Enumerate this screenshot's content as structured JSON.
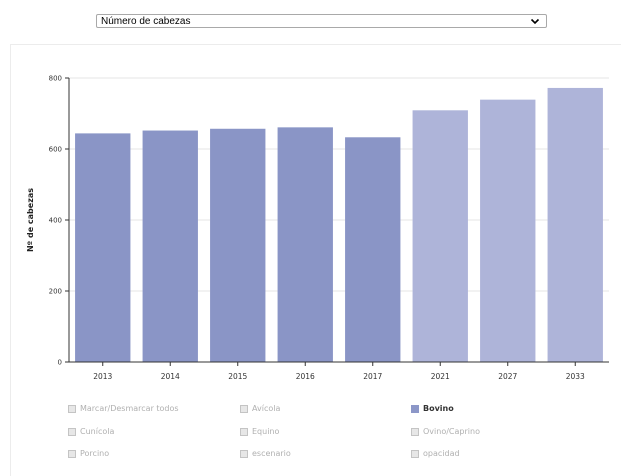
{
  "selector": {
    "value": "Número de cabezas"
  },
  "chart_data": {
    "type": "bar",
    "categories": [
      "2013",
      "2014",
      "2015",
      "2016",
      "2017",
      "2021",
      "2027",
      "2033"
    ],
    "values": [
      644,
      652,
      657,
      661,
      633,
      709,
      739,
      772
    ],
    "projected": [
      false,
      false,
      false,
      false,
      false,
      true,
      true,
      true
    ],
    "ylabel": "Nº de cabezas",
    "xlabel": "",
    "ylim": [
      0,
      800
    ],
    "yticks": [
      0,
      200,
      400,
      600,
      800
    ],
    "grid": true,
    "colors": {
      "historic": "#8a95c6",
      "projected": "#aeb4d9",
      "gridline": "#e6e6e6",
      "axis": "#333333"
    }
  },
  "legend": {
    "items": [
      {
        "label": "Marcar/Desmarcar todos",
        "active": false
      },
      {
        "label": "Avícola",
        "active": false
      },
      {
        "label": "Bovino",
        "active": true
      },
      {
        "label": "Cunícola",
        "active": false
      },
      {
        "label": "Equino",
        "active": false
      },
      {
        "label": "Ovino/Caprino",
        "active": false
      },
      {
        "label": "Porcino",
        "active": false
      },
      {
        "label": "escenario",
        "active": false
      },
      {
        "label": "opacidad",
        "active": false
      }
    ]
  }
}
